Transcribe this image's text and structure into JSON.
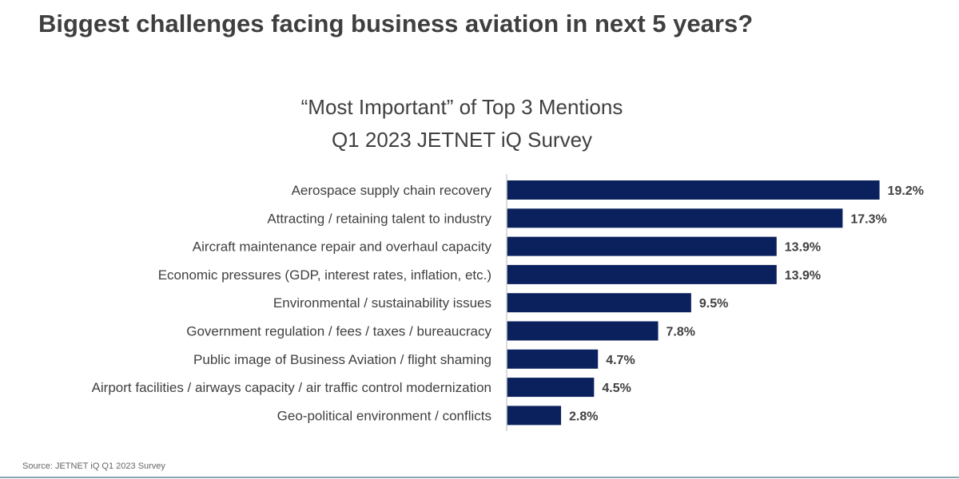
{
  "chart_data": {
    "type": "bar",
    "orientation": "horizontal",
    "title": "Biggest challenges facing business aviation in next 5 years?",
    "subtitle": [
      "“Most Important” of Top 3 Mentions",
      "Q1 2023 JETNET iQ Survey"
    ],
    "categories": [
      "Aerospace supply chain recovery",
      "Attracting / retaining talent to industry",
      "Aircraft maintenance repair and overhaul capacity",
      "Economic pressures (GDP, interest rates, inflation, etc.)",
      "Environmental / sustainability  issues",
      "Government regulation / fees / taxes / bureaucracy",
      "Public image of Business Aviation / flight shaming",
      "Airport facilities / airways capacity / air traffic control modernization",
      "Geo-political environment / conflicts"
    ],
    "values": [
      19.2,
      17.3,
      13.9,
      13.9,
      9.5,
      7.8,
      4.7,
      4.5,
      2.8
    ],
    "data_labels": [
      "19.2%",
      "17.3%",
      "13.9%",
      "13.9%",
      "9.5%",
      "7.8%",
      "4.7%",
      "4.5%",
      "2.8%"
    ],
    "unit": "%",
    "xlim": [
      0,
      22
    ],
    "grid": false,
    "bar_color": "#0b215e"
  },
  "footer": {
    "source": "Source: JETNET iQ Q1 2023 Survey"
  }
}
